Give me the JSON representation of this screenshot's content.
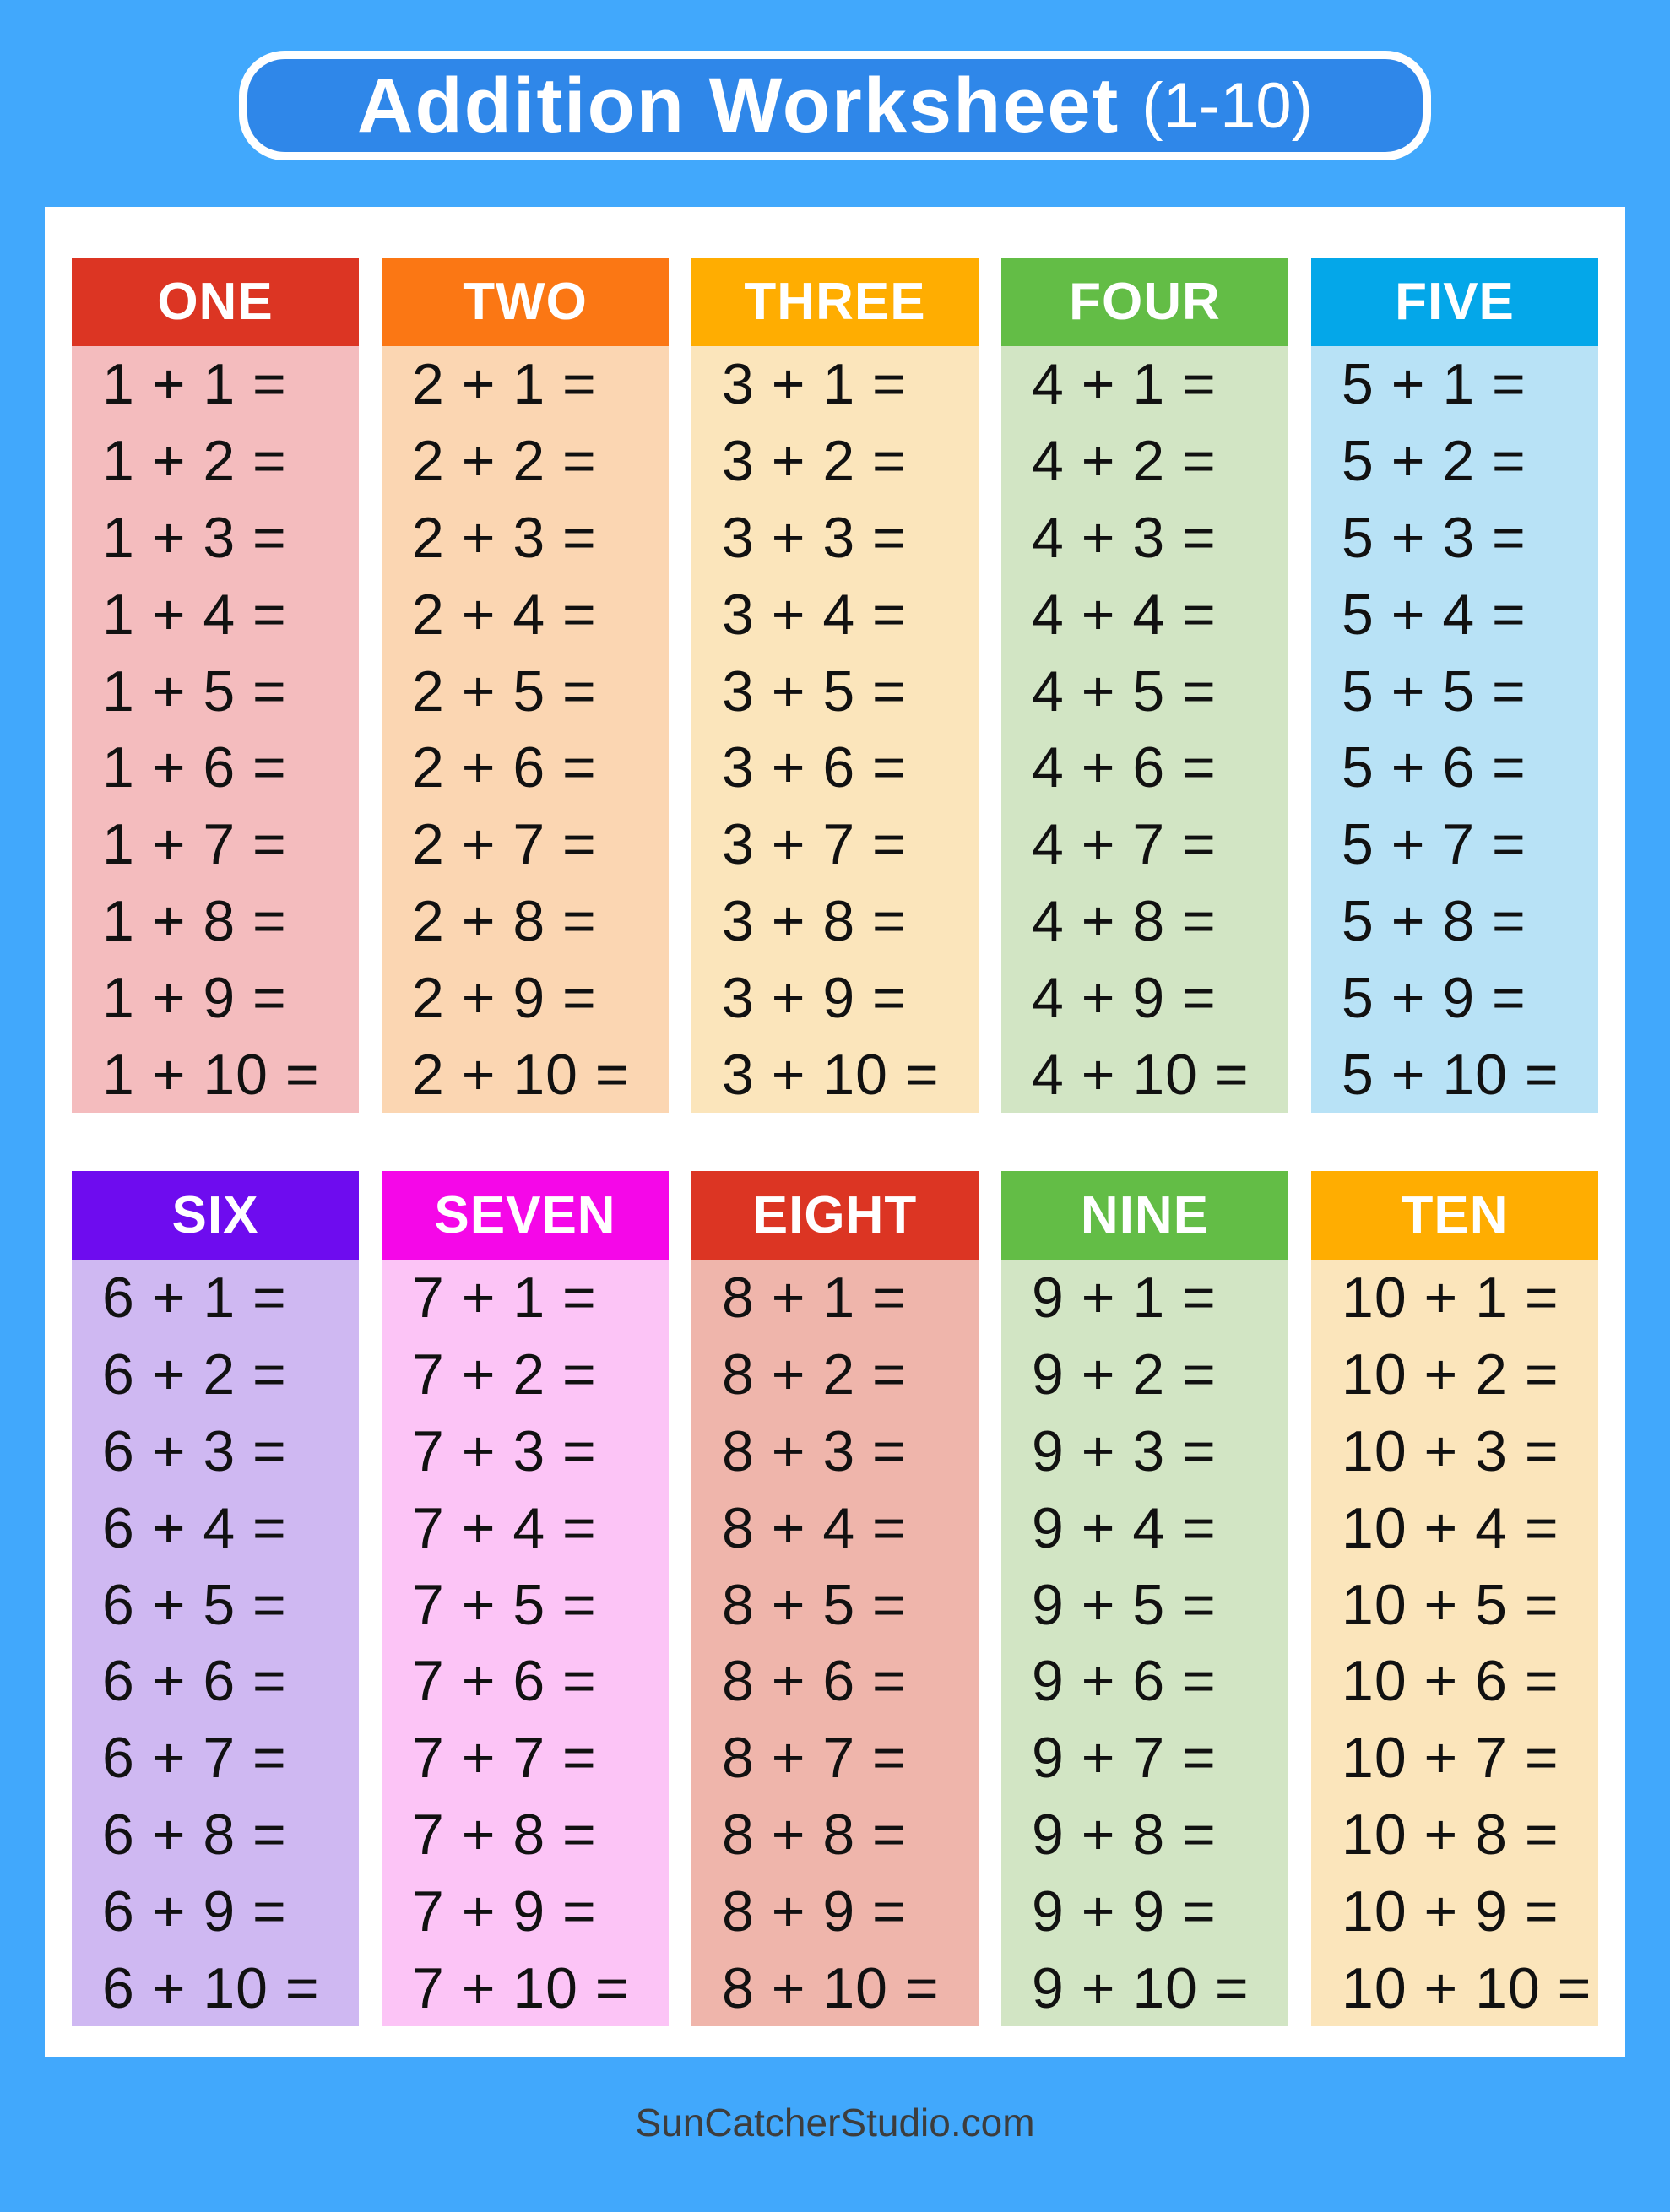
{
  "title": {
    "main": "Addition Worksheet",
    "suffix": "(1-10)"
  },
  "footer": {
    "site": "SunCatcherStudio.com"
  },
  "colors": {
    "page_background": "#41a8fc",
    "title_box_fill": "#2f87e9",
    "title_box_border": "#ffffff",
    "sheet_background": "#ffffff",
    "equation_ink": "#111111",
    "footer_text": "#3d3d3d"
  },
  "columns": [
    {
      "label": "ONE",
      "header_color": "#dc3523",
      "body_color": "#f4bcbe",
      "equations": [
        "1 + 1 =",
        "1 + 2 =",
        "1 + 3 =",
        "1 + 4 =",
        "1 + 5 =",
        "1 + 6 =",
        "1 + 7 =",
        "1 + 8 =",
        "1 + 9 =",
        "1 + 10 ="
      ]
    },
    {
      "label": "TWO",
      "header_color": "#fb7714",
      "body_color": "#fbd6b2",
      "equations": [
        "2 + 1 =",
        "2 + 2 =",
        "2 + 3 =",
        "2 + 4 =",
        "2 + 5 =",
        "2 + 6 =",
        "2 + 7 =",
        "2 + 8 =",
        "2 + 9 =",
        "2 + 10 ="
      ]
    },
    {
      "label": "THREE",
      "header_color": "#ffad01",
      "body_color": "#fbe5bb",
      "equations": [
        "3 + 1 =",
        "3 + 2 =",
        "3 + 3 =",
        "3 + 4 =",
        "3 + 5 =",
        "3 + 6 =",
        "3 + 7 =",
        "3 + 8 =",
        "3 + 9 =",
        "3 + 10 ="
      ]
    },
    {
      "label": "FOUR",
      "header_color": "#63bd46",
      "body_color": "#d2e5c4",
      "equations": [
        "4 + 1 =",
        "4 + 2 =",
        "4 + 3 =",
        "4 + 4 =",
        "4 + 5 =",
        "4 + 6 =",
        "4 + 7 =",
        "4 + 8 =",
        "4 + 9 =",
        "4 + 10 ="
      ]
    },
    {
      "label": "FIVE",
      "header_color": "#04a7e9",
      "body_color": "#b8e2f6",
      "equations": [
        "5 + 1 =",
        "5 + 2 =",
        "5 + 3 =",
        "5 + 4 =",
        "5 + 5 =",
        "5 + 6 =",
        "5 + 7 =",
        "5 + 8 =",
        "5 + 9 =",
        "5 + 10 ="
      ]
    },
    {
      "label": "SIX",
      "header_color": "#6e0cef",
      "body_color": "#cfb8f2",
      "equations": [
        "6 + 1 =",
        "6 + 2 =",
        "6 + 3 =",
        "6 + 4 =",
        "6 + 5 =",
        "6 + 6 =",
        "6 + 7 =",
        "6 + 8 =",
        "6 + 9 =",
        "6 + 10 ="
      ]
    },
    {
      "label": "SEVEN",
      "header_color": "#f507e8",
      "body_color": "#fcc4f6",
      "equations": [
        "7 + 1 =",
        "7 + 2 =",
        "7 + 3 =",
        "7 + 4 =",
        "7 + 5 =",
        "7 + 6 =",
        "7 + 7 =",
        "7 + 8 =",
        "7 + 9 =",
        "7 + 10 ="
      ]
    },
    {
      "label": "EIGHT",
      "header_color": "#dc3523",
      "body_color": "#efb5ab",
      "equations": [
        "8 + 1 =",
        "8 + 2 =",
        "8 + 3 =",
        "8 + 4 =",
        "8 + 5 =",
        "8 + 6 =",
        "8 + 7 =",
        "8 + 8 =",
        "8 + 9 =",
        "8 + 10 ="
      ]
    },
    {
      "label": "NINE",
      "header_color": "#63bd46",
      "body_color": "#d2e5c4",
      "equations": [
        "9 + 1 =",
        "9 + 2 =",
        "9 + 3 =",
        "9 + 4 =",
        "9 + 5 =",
        "9 + 6 =",
        "9 + 7 =",
        "9 + 8 =",
        "9 + 9 =",
        "9 + 10 ="
      ]
    },
    {
      "label": "TEN",
      "header_color": "#ffad01",
      "body_color": "#fbe5bb",
      "equations": [
        "10 + 1 =",
        "10 + 2 =",
        "10 + 3 =",
        "10 + 4 =",
        "10 + 5 =",
        "10 + 6 =",
        "10 + 7 =",
        "10 + 8 =",
        "10 + 9 =",
        "10 + 10 ="
      ]
    }
  ]
}
